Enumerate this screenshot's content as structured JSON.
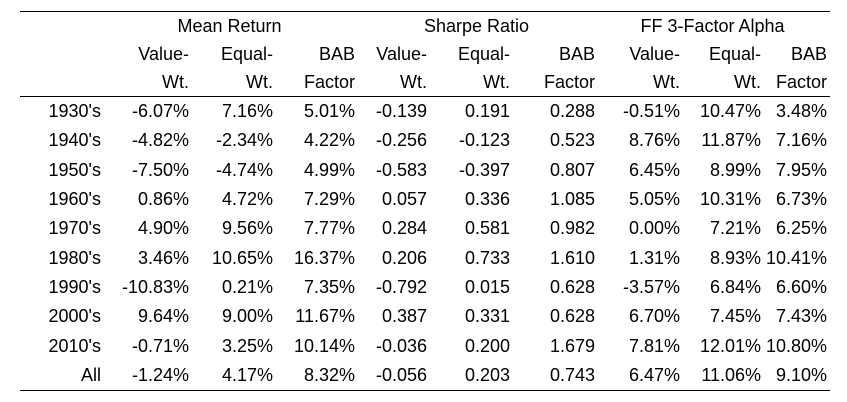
{
  "table": {
    "groups": [
      "Mean Return",
      "Sharpe Ratio",
      "FF 3-Factor Alpha"
    ],
    "sub_top": [
      "Value-",
      "Equal-",
      "BAB",
      "Value-",
      "Equal-",
      "BAB",
      "Value-",
      "Equal-",
      "BAB"
    ],
    "sub_bottom": [
      "Wt.",
      "Wt.",
      "Factor",
      "Wt.",
      "Wt.",
      "Factor",
      "Wt.",
      "Wt.",
      "Factor"
    ],
    "rows": [
      {
        "label": "1930's",
        "cells": [
          "-6.07%",
          "7.16%",
          "5.01%",
          "-0.139",
          "0.191",
          "0.288",
          "-0.51%",
          "10.47%",
          "3.48%"
        ]
      },
      {
        "label": "1940's",
        "cells": [
          "-4.82%",
          "-2.34%",
          "4.22%",
          "-0.256",
          "-0.123",
          "0.523",
          "8.76%",
          "11.87%",
          "7.16%"
        ]
      },
      {
        "label": "1950's",
        "cells": [
          "-7.50%",
          "-4.74%",
          "4.99%",
          "-0.583",
          "-0.397",
          "0.807",
          "6.45%",
          "8.99%",
          "7.95%"
        ]
      },
      {
        "label": "1960's",
        "cells": [
          "0.86%",
          "4.72%",
          "7.29%",
          "0.057",
          "0.336",
          "1.085",
          "5.05%",
          "10.31%",
          "6.73%"
        ]
      },
      {
        "label": "1970's",
        "cells": [
          "4.90%",
          "9.56%",
          "7.77%",
          "0.284",
          "0.581",
          "0.982",
          "0.00%",
          "7.21%",
          "6.25%"
        ]
      },
      {
        "label": "1980's",
        "cells": [
          "3.46%",
          "10.65%",
          "16.37%",
          "0.206",
          "0.733",
          "1.610",
          "1.31%",
          "8.93%",
          "10.41%"
        ]
      },
      {
        "label": "1990's",
        "cells": [
          "-10.83%",
          "0.21%",
          "7.35%",
          "-0.792",
          "0.015",
          "0.628",
          "-3.57%",
          "6.84%",
          "6.60%"
        ]
      },
      {
        "label": "2000's",
        "cells": [
          "9.64%",
          "9.00%",
          "11.67%",
          "0.387",
          "0.331",
          "0.628",
          "6.70%",
          "7.45%",
          "7.43%"
        ]
      },
      {
        "label": "2010's",
        "cells": [
          "-0.71%",
          "3.25%",
          "10.14%",
          "-0.036",
          "0.200",
          "1.679",
          "7.81%",
          "12.01%",
          "10.80%"
        ]
      },
      {
        "label": "All",
        "cells": [
          "-1.24%",
          "4.17%",
          "8.32%",
          "-0.056",
          "0.203",
          "0.743",
          "6.47%",
          "11.06%",
          "9.10%"
        ]
      }
    ]
  }
}
